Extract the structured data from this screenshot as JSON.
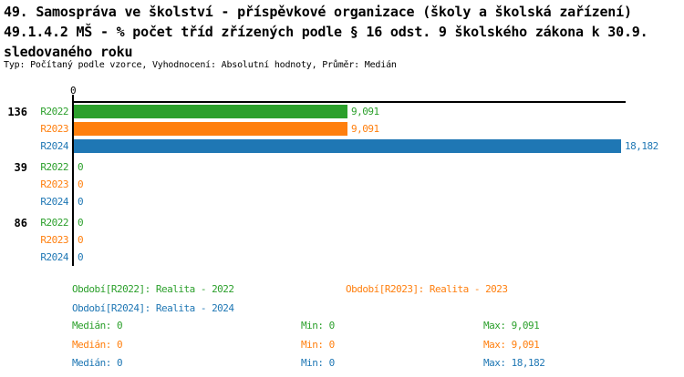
{
  "title": {
    "line1": "49. Samospráva ve školství - příspěvkové organizace (školy a školská zařízení)",
    "line2": "49.1.4.2 MŠ - % počet tříd zřízených podle § 16 odst. 9 školského zákona k 30.9.",
    "line3": "sledovaného roku"
  },
  "meta": "Typ: Počítaný podle vzorce, Vyhodnocení: Absolutní hodnoty, Průměr: Medián",
  "colors": {
    "r2022": "#2ca02c",
    "r2023": "#ff7f0e",
    "r2024": "#1f77b4",
    "axis": "#000000"
  },
  "chart_data": {
    "type": "bar",
    "orientation": "horizontal",
    "title": "49. Samospráva ve školství - příspěvkové organizace (školy a školská zařízení)",
    "subtitle": "49.1.4.2 MŠ - % počet tříd zřízených podle § 16 odst. 9 školského zákona k 30.9. sledovaného roku",
    "xlim": [
      0,
      18.182
    ],
    "x_axis_ticks": [
      "0"
    ],
    "grid": false,
    "categories": [
      "136",
      "39",
      "86"
    ],
    "series_names": [
      "R2022",
      "R2023",
      "R2024"
    ],
    "groups": [
      {
        "label": "136",
        "rows": [
          {
            "series": "R2022",
            "value": 9.091,
            "value_label": "9,091",
            "color_key": "r2022"
          },
          {
            "series": "R2023",
            "value": 9.091,
            "value_label": "9,091",
            "color_key": "r2023"
          },
          {
            "series": "R2024",
            "value": 18.182,
            "value_label": "18,182",
            "color_key": "r2024"
          }
        ]
      },
      {
        "label": "39",
        "rows": [
          {
            "series": "R2022",
            "value": 0,
            "value_label": "0",
            "color_key": "r2022"
          },
          {
            "series": "R2023",
            "value": 0,
            "value_label": "0",
            "color_key": "r2023"
          },
          {
            "series": "R2024",
            "value": 0,
            "value_label": "0",
            "color_key": "r2024"
          }
        ]
      },
      {
        "label": "86",
        "rows": [
          {
            "series": "R2022",
            "value": 0,
            "value_label": "0",
            "color_key": "r2022"
          },
          {
            "series": "R2023",
            "value": 0,
            "value_label": "0",
            "color_key": "r2023"
          },
          {
            "series": "R2024",
            "value": 0,
            "value_label": "0",
            "color_key": "r2024"
          }
        ]
      }
    ]
  },
  "legend": {
    "items": [
      {
        "label": "Období[R2022]: Realita - 2022",
        "color_key": "r2022"
      },
      {
        "label": "Období[R2023]: Realita - 2023",
        "color_key": "r2023"
      },
      {
        "label": "Období[R2024]: Realita - 2024",
        "color_key": "r2024"
      }
    ]
  },
  "stats": {
    "rows": [
      {
        "color_key": "r2022",
        "median": "Medián: 0",
        "min": "Min: 0",
        "max": "Max: 9,091"
      },
      {
        "color_key": "r2023",
        "median": "Medián: 0",
        "min": "Min: 0",
        "max": "Max: 9,091"
      },
      {
        "color_key": "r2024",
        "median": "Medián: 0",
        "min": "Min: 0",
        "max": "Max: 18,182"
      }
    ]
  }
}
